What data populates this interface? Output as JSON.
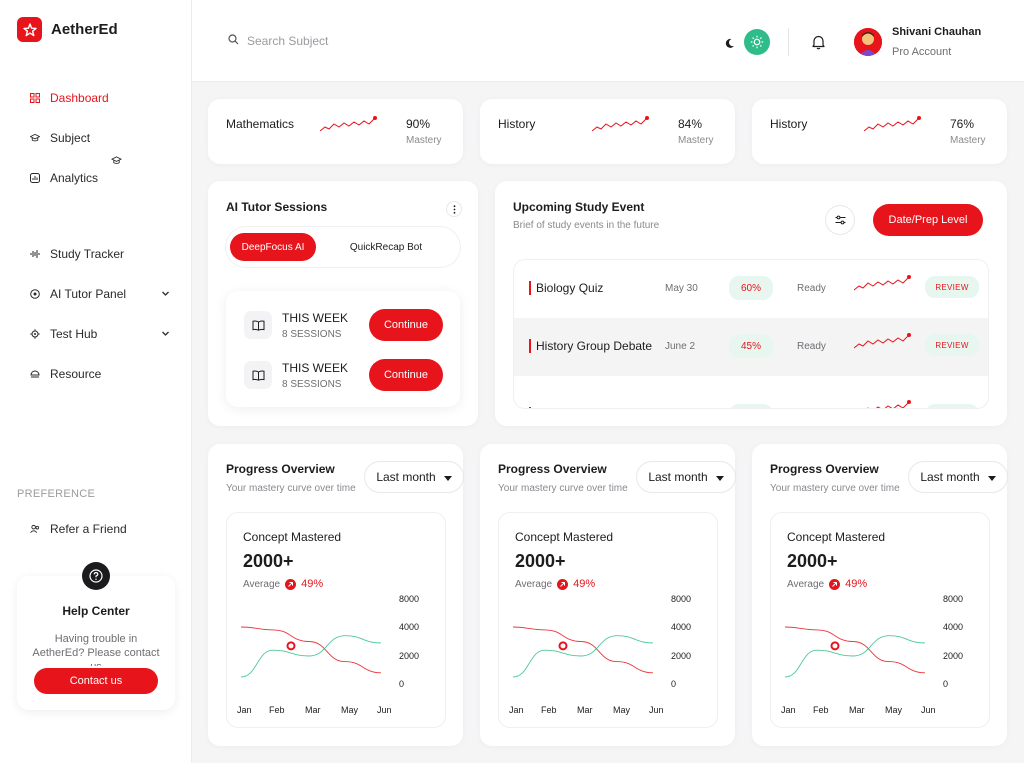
{
  "app": {
    "name": "AetherEd",
    "accent": "#e8141b",
    "success": "#2ebd8a"
  },
  "sidebar": {
    "items": [
      {
        "label": "Dashboard",
        "icon": "grid-icon",
        "active": true
      },
      {
        "label": "Subject",
        "icon": "graduation-cap-icon"
      },
      {
        "label": "Analytics",
        "icon": "analytics-icon"
      },
      {
        "label": "Study Tracker",
        "icon": "activity-icon"
      },
      {
        "label": "AI Tutor Panel",
        "icon": "target-icon",
        "expandable": true
      },
      {
        "label": "Test Hub",
        "icon": "gear-icon",
        "expandable": true
      },
      {
        "label": "Resource",
        "icon": "resource-icon"
      }
    ],
    "preference_label": "PREFERENCE",
    "refer": "Refer a Friend",
    "help": {
      "title": "Help Center",
      "text": "Having trouble in AetherEd? Please contact us",
      "button": "Contact us"
    }
  },
  "header": {
    "search_placeholder": "Search Subject",
    "user_name": "Shivani Chauhan",
    "user_role": "Pro Account"
  },
  "mastery": [
    {
      "subject": "Mathematics",
      "value": "90%",
      "label": "Mastery"
    },
    {
      "subject": "History",
      "value": "84%",
      "label": "Mastery"
    },
    {
      "subject": "History",
      "value": "76%",
      "label": "Mastery"
    }
  ],
  "tutor": {
    "title": "AI Tutor Sessions",
    "tabs": [
      "DeepFocus AI",
      "QuickRecap Bot"
    ],
    "sessions": [
      {
        "period": "THIS WEEK",
        "count": "8 SESSIONS",
        "button": "Continue"
      },
      {
        "period": "THIS WEEK",
        "count": "8 SESSIONS",
        "button": "Continue"
      }
    ]
  },
  "upcoming": {
    "title": "Upcoming Study Event",
    "subtitle": "Brief of study events in the future",
    "button": "Date/Prep Level",
    "events": [
      {
        "name": "Biology Quiz",
        "date": "May 30",
        "progress": "60%",
        "status": "Ready",
        "action": "REVIEW"
      },
      {
        "name": "History Group Debate",
        "date": "June 2",
        "progress": "45%",
        "status": "Ready",
        "action": "REVIEW"
      }
    ]
  },
  "progress_cards": [
    {
      "title": "Progress Overview",
      "subtitle": "Your mastery curve over time",
      "select": "Last month",
      "metric_label": "Concept Mastered",
      "metric_value": "2000+",
      "avg_label": "Average",
      "avg_value": "49%"
    },
    {
      "title": "Progress Overview",
      "subtitle": "Your mastery curve over time",
      "select": "Last month",
      "metric_label": "Concept Mastered",
      "metric_value": "2000+",
      "avg_label": "Average",
      "avg_value": "49%"
    },
    {
      "title": "Progress Overview",
      "subtitle": "Your mastery curve over time",
      "select": "Last month",
      "metric_label": "Concept Mastered",
      "metric_value": "2000+",
      "avg_label": "Average",
      "avg_value": "49%"
    }
  ],
  "chart_data": {
    "type": "line",
    "x": [
      "Jan",
      "Feb",
      "Mar",
      "May",
      "Jun"
    ],
    "ylim": [
      0,
      8000
    ],
    "yticks": [
      "8000",
      "4000",
      "2000",
      "0"
    ],
    "series": [
      {
        "color": "#e8141b",
        "values": [
          4000,
          3800,
          3000,
          1600,
          800
        ]
      },
      {
        "color": "#2ebd8a",
        "values": [
          500,
          2400,
          2000,
          3400,
          2900
        ]
      }
    ],
    "marker": {
      "x_index": 1.5,
      "value": 2700
    }
  }
}
